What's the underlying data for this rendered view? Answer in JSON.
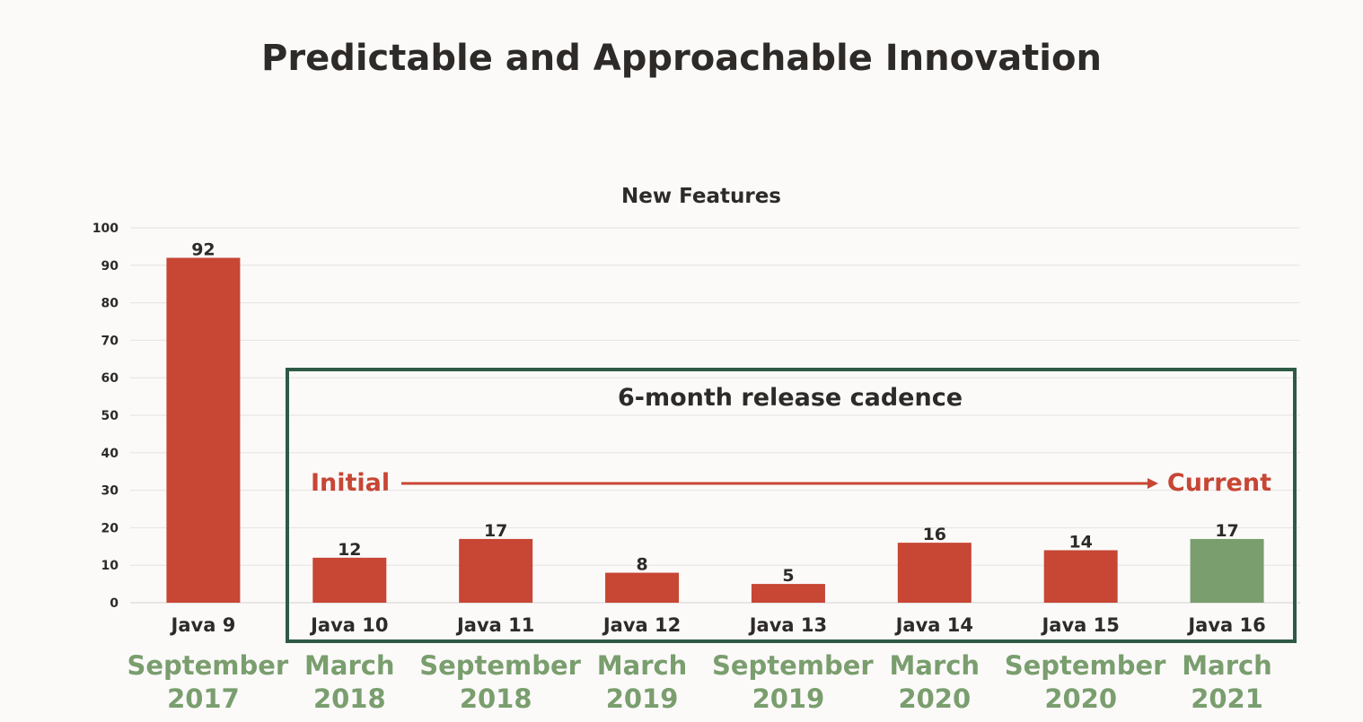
{
  "title": "Predictable and Approachable Innovation",
  "chart_data": {
    "type": "bar",
    "title": "New Features",
    "categories": [
      "Java 9",
      "Java 10",
      "Java 11",
      "Java 12",
      "Java 13",
      "Java 14",
      "Java 15",
      "Java 16"
    ],
    "values": [
      92,
      12,
      17,
      8,
      5,
      16,
      14,
      17
    ],
    "dates": [
      [
        "September",
        "2017"
      ],
      [
        "March",
        "2018"
      ],
      [
        "September",
        "2018"
      ],
      [
        "March",
        "2019"
      ],
      [
        "September",
        "2019"
      ],
      [
        "March",
        "2020"
      ],
      [
        "September",
        "2020"
      ],
      [
        "March",
        "2021"
      ]
    ],
    "ylim": [
      0,
      100
    ],
    "yticks": [
      0,
      10,
      20,
      30,
      40,
      50,
      60,
      70,
      80,
      90,
      100
    ],
    "grid": true,
    "colors": {
      "bar": "#c74634",
      "highlight_bar": "#7a9e6e",
      "date_text": "#7a9e6e",
      "box": "#2f5a45",
      "arrow": "#c74634"
    },
    "highlight_index": 7,
    "annotation": {
      "box_label": "6-month release cadence",
      "start_label": "Initial",
      "end_label": "Current"
    }
  }
}
